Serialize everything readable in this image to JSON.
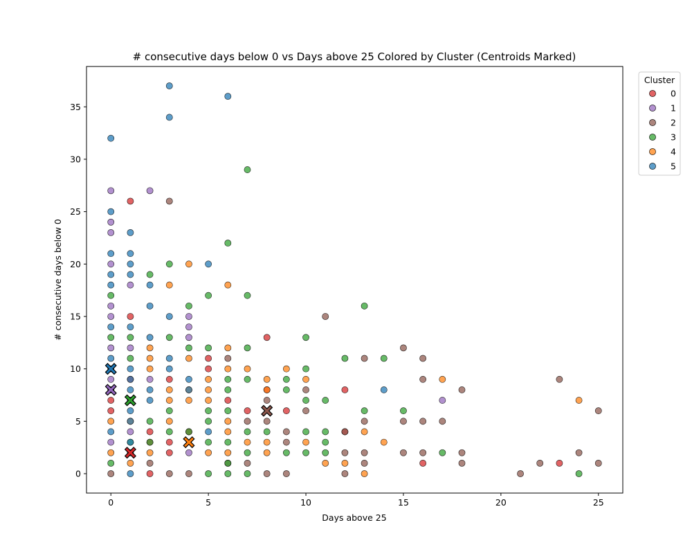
{
  "chart_data": {
    "type": "scatter",
    "title": "# consecutive days below 0 vs Days above 25 Colored by Cluster (Centroids Marked)",
    "xlabel": "Days above 25",
    "ylabel": "# consecutive days below 0",
    "xlim": [
      -1.25,
      26.25
    ],
    "ylim": [
      -1.85,
      38.85
    ],
    "xticks": [
      0,
      5,
      10,
      15,
      20,
      25
    ],
    "yticks": [
      0,
      5,
      10,
      15,
      20,
      25,
      30,
      35
    ],
    "grid": false,
    "legend": {
      "title": "Cluster",
      "placement": "outside-top-right"
    },
    "series": [
      {
        "name": "0",
        "color": "#d62728",
        "points": [
          [
            0,
            7
          ],
          [
            1,
            15
          ],
          [
            8,
            13
          ],
          [
            1,
            26
          ],
          [
            5,
            11
          ],
          [
            3,
            9
          ],
          [
            9,
            6
          ],
          [
            7,
            6
          ],
          [
            6,
            7
          ],
          [
            8,
            8
          ],
          [
            12,
            8
          ],
          [
            12,
            4
          ],
          [
            16,
            1
          ],
          [
            23,
            1
          ],
          [
            2,
            4
          ],
          [
            1,
            2
          ],
          [
            2,
            3
          ],
          [
            3,
            3
          ],
          [
            2,
            0
          ],
          [
            3,
            2
          ],
          [
            0,
            6
          ],
          [
            4,
            4
          ],
          [
            5,
            10
          ],
          [
            1,
            9
          ]
        ]
      },
      {
        "name": "1",
        "color": "#9467bd",
        "points": [
          [
            0,
            27
          ],
          [
            0,
            24
          ],
          [
            0,
            23
          ],
          [
            2,
            27
          ],
          [
            0,
            20
          ],
          [
            1,
            18
          ],
          [
            0,
            16
          ],
          [
            0,
            15
          ],
          [
            0,
            12
          ],
          [
            0,
            9
          ],
          [
            0,
            8
          ],
          [
            4,
            15
          ],
          [
            4,
            14
          ],
          [
            4,
            13
          ],
          [
            1,
            12
          ],
          [
            2,
            9
          ],
          [
            17,
            7
          ],
          [
            1,
            4
          ],
          [
            4,
            2
          ],
          [
            0,
            3
          ]
        ]
      },
      {
        "name": "2",
        "color": "#8c564b",
        "points": [
          [
            3,
            26
          ],
          [
            11,
            15
          ],
          [
            15,
            12
          ],
          [
            16,
            11
          ],
          [
            6,
            11
          ],
          [
            13,
            11
          ],
          [
            23,
            9
          ],
          [
            16,
            9
          ],
          [
            18,
            8
          ],
          [
            10,
            8
          ],
          [
            8,
            7
          ],
          [
            25,
            6
          ],
          [
            10,
            6
          ],
          [
            13,
            5
          ],
          [
            15,
            5
          ],
          [
            16,
            5
          ],
          [
            17,
            5
          ],
          [
            8,
            5
          ],
          [
            7,
            5
          ],
          [
            12,
            4
          ],
          [
            9,
            4
          ],
          [
            9,
            3
          ],
          [
            15,
            2
          ],
          [
            16,
            2
          ],
          [
            18,
            2
          ],
          [
            24,
            2
          ],
          [
            13,
            2
          ],
          [
            12,
            2
          ],
          [
            18,
            1
          ],
          [
            22,
            1
          ],
          [
            25,
            1
          ],
          [
            13,
            1
          ],
          [
            21,
            0
          ],
          [
            12,
            0
          ],
          [
            9,
            0
          ],
          [
            8,
            0
          ],
          [
            4,
            0
          ],
          [
            7,
            1
          ],
          [
            6,
            1
          ],
          [
            2,
            1
          ],
          [
            3,
            0
          ],
          [
            0,
            0
          ]
        ]
      },
      {
        "name": "3",
        "color": "#2ca02c",
        "points": [
          [
            7,
            29
          ],
          [
            6,
            22
          ],
          [
            3,
            20
          ],
          [
            2,
            19
          ],
          [
            0,
            17
          ],
          [
            5,
            17
          ],
          [
            7,
            17
          ],
          [
            4,
            16
          ],
          [
            13,
            16
          ],
          [
            3,
            13
          ],
          [
            10,
            13
          ],
          [
            1,
            13
          ],
          [
            5,
            12
          ],
          [
            7,
            12
          ],
          [
            4,
            12
          ],
          [
            1,
            11
          ],
          [
            12,
            11
          ],
          [
            14,
            11
          ],
          [
            10,
            10
          ],
          [
            7,
            9
          ],
          [
            9,
            9
          ],
          [
            6,
            9
          ],
          [
            6,
            8
          ],
          [
            9,
            8
          ],
          [
            10,
            7
          ],
          [
            11,
            7
          ],
          [
            3,
            6
          ],
          [
            5,
            6
          ],
          [
            6,
            6
          ],
          [
            13,
            6
          ],
          [
            15,
            6
          ],
          [
            2,
            5
          ],
          [
            5,
            5
          ],
          [
            11,
            4
          ],
          [
            7,
            4
          ],
          [
            10,
            4
          ],
          [
            5,
            3
          ],
          [
            6,
            3
          ],
          [
            11,
            3
          ],
          [
            2,
            3
          ],
          [
            1,
            3
          ],
          [
            9,
            2
          ],
          [
            10,
            2
          ],
          [
            11,
            2
          ],
          [
            17,
            2
          ],
          [
            7,
            2
          ],
          [
            6,
            1
          ],
          [
            0,
            1
          ],
          [
            5,
            0
          ],
          [
            6,
            0
          ],
          [
            7,
            0
          ],
          [
            24,
            0
          ],
          [
            4,
            4
          ],
          [
            3,
            4
          ],
          [
            8,
            4
          ],
          [
            0,
            13
          ]
        ]
      },
      {
        "name": "4",
        "color": "#ff7f0e",
        "points": [
          [
            4,
            20
          ],
          [
            6,
            18
          ],
          [
            3,
            18
          ],
          [
            2,
            12
          ],
          [
            6,
            12
          ],
          [
            4,
            11
          ],
          [
            2,
            11
          ],
          [
            2,
            10
          ],
          [
            7,
            10
          ],
          [
            9,
            10
          ],
          [
            10,
            9
          ],
          [
            8,
            9
          ],
          [
            17,
            9
          ],
          [
            5,
            9
          ],
          [
            6,
            10
          ],
          [
            3,
            8
          ],
          [
            4,
            8
          ],
          [
            8,
            8
          ],
          [
            24,
            7
          ],
          [
            3,
            7
          ],
          [
            4,
            7
          ],
          [
            5,
            7
          ],
          [
            6,
            5
          ],
          [
            2,
            2
          ],
          [
            5,
            2
          ],
          [
            6,
            2
          ],
          [
            7,
            3
          ],
          [
            8,
            3
          ],
          [
            10,
            3
          ],
          [
            14,
            3
          ],
          [
            13,
            4
          ],
          [
            11,
            1
          ],
          [
            12,
            1
          ],
          [
            13,
            0
          ],
          [
            1,
            1
          ],
          [
            0,
            2
          ],
          [
            0,
            5
          ],
          [
            1,
            5
          ],
          [
            5,
            8
          ],
          [
            3,
            5
          ],
          [
            6,
            4
          ],
          [
            8,
            2
          ]
        ]
      },
      {
        "name": "5",
        "color": "#1f77b4",
        "points": [
          [
            3,
            37
          ],
          [
            6,
            36
          ],
          [
            3,
            34
          ],
          [
            0,
            32
          ],
          [
            0,
            25
          ],
          [
            1,
            23
          ],
          [
            0,
            21
          ],
          [
            1,
            21
          ],
          [
            0,
            19
          ],
          [
            1,
            19
          ],
          [
            0,
            18
          ],
          [
            2,
            18
          ],
          [
            5,
            20
          ],
          [
            1,
            20
          ],
          [
            0,
            14
          ],
          [
            1,
            14
          ],
          [
            3,
            15
          ],
          [
            2,
            16
          ],
          [
            2,
            13
          ],
          [
            0,
            11
          ],
          [
            3,
            11
          ],
          [
            1,
            10
          ],
          [
            0,
            10
          ],
          [
            3,
            10
          ],
          [
            1,
            9
          ],
          [
            4,
            9
          ],
          [
            2,
            8
          ],
          [
            1,
            8
          ],
          [
            4,
            8
          ],
          [
            0,
            8
          ],
          [
            14,
            8
          ],
          [
            2,
            7
          ],
          [
            1,
            7
          ],
          [
            1,
            6
          ],
          [
            5,
            4
          ],
          [
            1,
            5
          ],
          [
            1,
            3
          ],
          [
            1,
            0
          ],
          [
            0,
            4
          ]
        ]
      }
    ],
    "centroids": [
      {
        "cluster": "0",
        "color": "#d62728",
        "x": 1,
        "y": 2
      },
      {
        "cluster": "1",
        "color": "#9467bd",
        "x": 0,
        "y": 8
      },
      {
        "cluster": "2",
        "color": "#8c564b",
        "x": 8,
        "y": 6
      },
      {
        "cluster": "3",
        "color": "#2ca02c",
        "x": 1,
        "y": 7
      },
      {
        "cluster": "4",
        "color": "#ff7f0e",
        "x": 4,
        "y": 3
      },
      {
        "cluster": "5",
        "color": "#1f77b4",
        "x": 0,
        "y": 10
      }
    ]
  }
}
